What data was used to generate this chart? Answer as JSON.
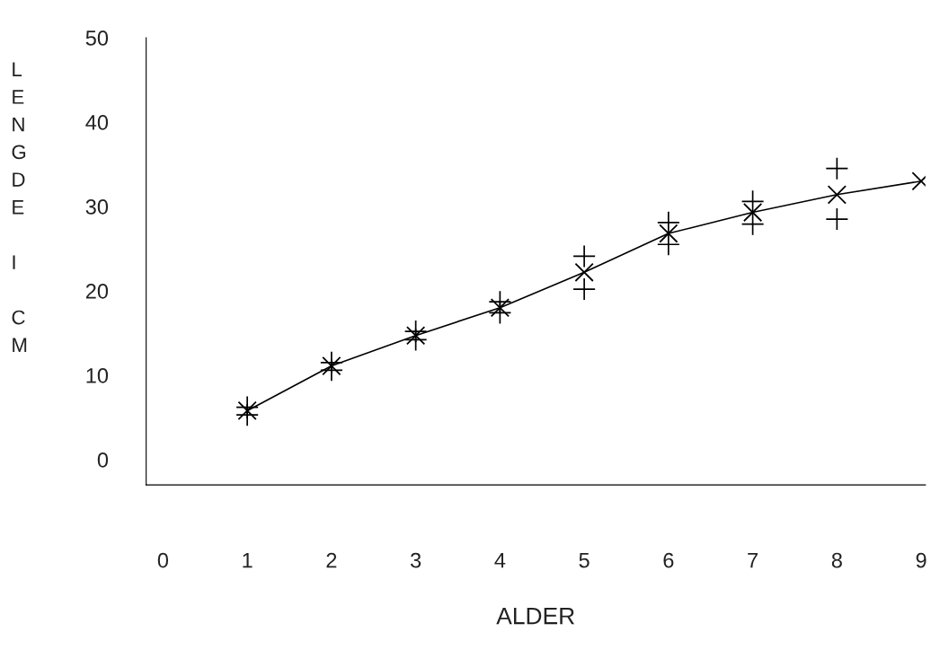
{
  "chart_data": {
    "type": "line",
    "xlabel": "ALDER",
    "ylabel": "LENGDE I CM",
    "xlim": [
      -0.2,
      9.05
    ],
    "xticks": [
      0,
      1,
      2,
      3,
      4,
      5,
      6,
      7,
      8,
      9
    ],
    "ylim": [
      -3,
      50
    ],
    "yticks": [
      0,
      10,
      20,
      30,
      40,
      50
    ],
    "grid": false,
    "legend": false,
    "series": [
      {
        "color": "#000000",
        "marker": "cross",
        "x": [
          1,
          2,
          3,
          4,
          5,
          6,
          7,
          8,
          9
        ],
        "values": [
          5.8,
          11.1,
          14.7,
          18.0,
          22.2,
          26.8,
          29.3,
          31.4,
          33.0
        ]
      },
      {
        "type": "scatter",
        "color": "#000000",
        "marker": "cross",
        "x": [
          1,
          1,
          2,
          2,
          3,
          3,
          4,
          4,
          5,
          5,
          6,
          6,
          7,
          7,
          8,
          8
        ],
        "values": [
          5.3,
          6.2,
          10.6,
          11.5,
          14.2,
          15.2,
          17.4,
          18.7,
          20.2,
          24.1,
          25.5,
          28.1,
          27.9,
          30.6,
          28.5,
          34.5
        ]
      }
    ]
  }
}
